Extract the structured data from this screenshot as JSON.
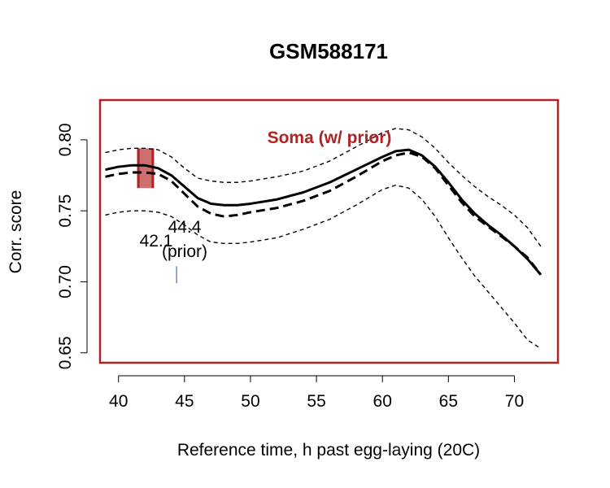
{
  "colors": {
    "frame": "#b22222",
    "band": "#b22222",
    "prior_tick": "#4169e1",
    "lines": "#000000",
    "panel_label": "#b22222"
  },
  "chart_data": {
    "type": "line",
    "title": "GSM588171",
    "xlabel": "Reference time, h past egg-laying (20C)",
    "ylabel": "Corr. score",
    "xlim": [
      38.6,
      73.3
    ],
    "ylim": [
      0.643,
      0.828
    ],
    "x_ticks": [
      40,
      45,
      50,
      55,
      60,
      65,
      70
    ],
    "y_ticks": [
      0.65,
      0.7,
      0.75,
      0.8
    ],
    "x_tick_labels": [
      "40",
      "45",
      "50",
      "55",
      "60",
      "65",
      "70"
    ],
    "y_tick_labels": [
      "0.65",
      "0.70",
      "0.75",
      "0.80"
    ],
    "grid": false,
    "panel_label": "Soma (w/ prior)",
    "series": [
      {
        "style": "solid",
        "x": [
          39,
          40,
          41,
          42,
          43,
          44,
          45,
          46,
          47,
          48,
          49,
          50,
          52,
          54,
          56,
          58,
          60,
          61,
          62,
          63,
          64,
          65,
          66,
          67,
          68,
          69,
          70,
          71,
          72
        ],
        "y": [
          0.779,
          0.781,
          0.782,
          0.782,
          0.78,
          0.775,
          0.767,
          0.759,
          0.755,
          0.754,
          0.754,
          0.755,
          0.758,
          0.763,
          0.77,
          0.779,
          0.788,
          0.792,
          0.793,
          0.789,
          0.781,
          0.77,
          0.758,
          0.748,
          0.74,
          0.733,
          0.725,
          0.716,
          0.705
        ]
      },
      {
        "style": "dashed",
        "x": [
          39,
          40,
          41,
          42,
          43,
          44,
          45,
          46,
          47,
          48,
          49,
          50,
          52,
          54,
          56,
          58,
          60,
          61,
          62,
          63,
          64,
          65,
          66,
          67,
          68,
          69,
          70,
          71,
          72
        ],
        "y": [
          0.774,
          0.776,
          0.777,
          0.777,
          0.776,
          0.771,
          0.762,
          0.753,
          0.748,
          0.746,
          0.747,
          0.749,
          0.752,
          0.757,
          0.764,
          0.774,
          0.785,
          0.789,
          0.791,
          0.788,
          0.78,
          0.768,
          0.756,
          0.746,
          0.739,
          0.732,
          0.725,
          0.717,
          0.705
        ]
      },
      {
        "style": "dotted-upper",
        "x": [
          39,
          40,
          41,
          42,
          43,
          44,
          45,
          46,
          47,
          48,
          49,
          50,
          52,
          54,
          56,
          58,
          60,
          61,
          62,
          63,
          64,
          65,
          66,
          67,
          68,
          69,
          70,
          71,
          72
        ],
        "y": [
          0.791,
          0.793,
          0.794,
          0.794,
          0.793,
          0.788,
          0.78,
          0.773,
          0.771,
          0.77,
          0.77,
          0.771,
          0.774,
          0.778,
          0.785,
          0.795,
          0.805,
          0.808,
          0.807,
          0.802,
          0.794,
          0.784,
          0.775,
          0.767,
          0.76,
          0.754,
          0.747,
          0.738,
          0.725
        ]
      },
      {
        "style": "dotted-lower",
        "x": [
          39,
          40,
          41,
          42,
          43,
          44,
          45,
          46,
          47,
          48,
          49,
          50,
          52,
          54,
          56,
          58,
          60,
          61,
          62,
          63,
          64,
          65,
          66,
          67,
          68,
          69,
          70,
          71,
          72
        ],
        "y": [
          0.747,
          0.749,
          0.75,
          0.75,
          0.749,
          0.746,
          0.74,
          0.733,
          0.728,
          0.727,
          0.727,
          0.728,
          0.731,
          0.737,
          0.744,
          0.754,
          0.765,
          0.768,
          0.766,
          0.758,
          0.746,
          0.731,
          0.717,
          0.704,
          0.693,
          0.682,
          0.671,
          0.659,
          0.653
        ]
      }
    ],
    "estimate_band": {
      "x_start": 41.5,
      "x_end": 42.6,
      "y_low": 0.766,
      "y_high": 0.794
    },
    "estimate_label": "42.1",
    "prior_estimate": {
      "x": 44.4,
      "y_low": 0.699,
      "y_high": 0.711
    },
    "prior_label_value": "44.4",
    "prior_label_suffix": "(prior)"
  }
}
